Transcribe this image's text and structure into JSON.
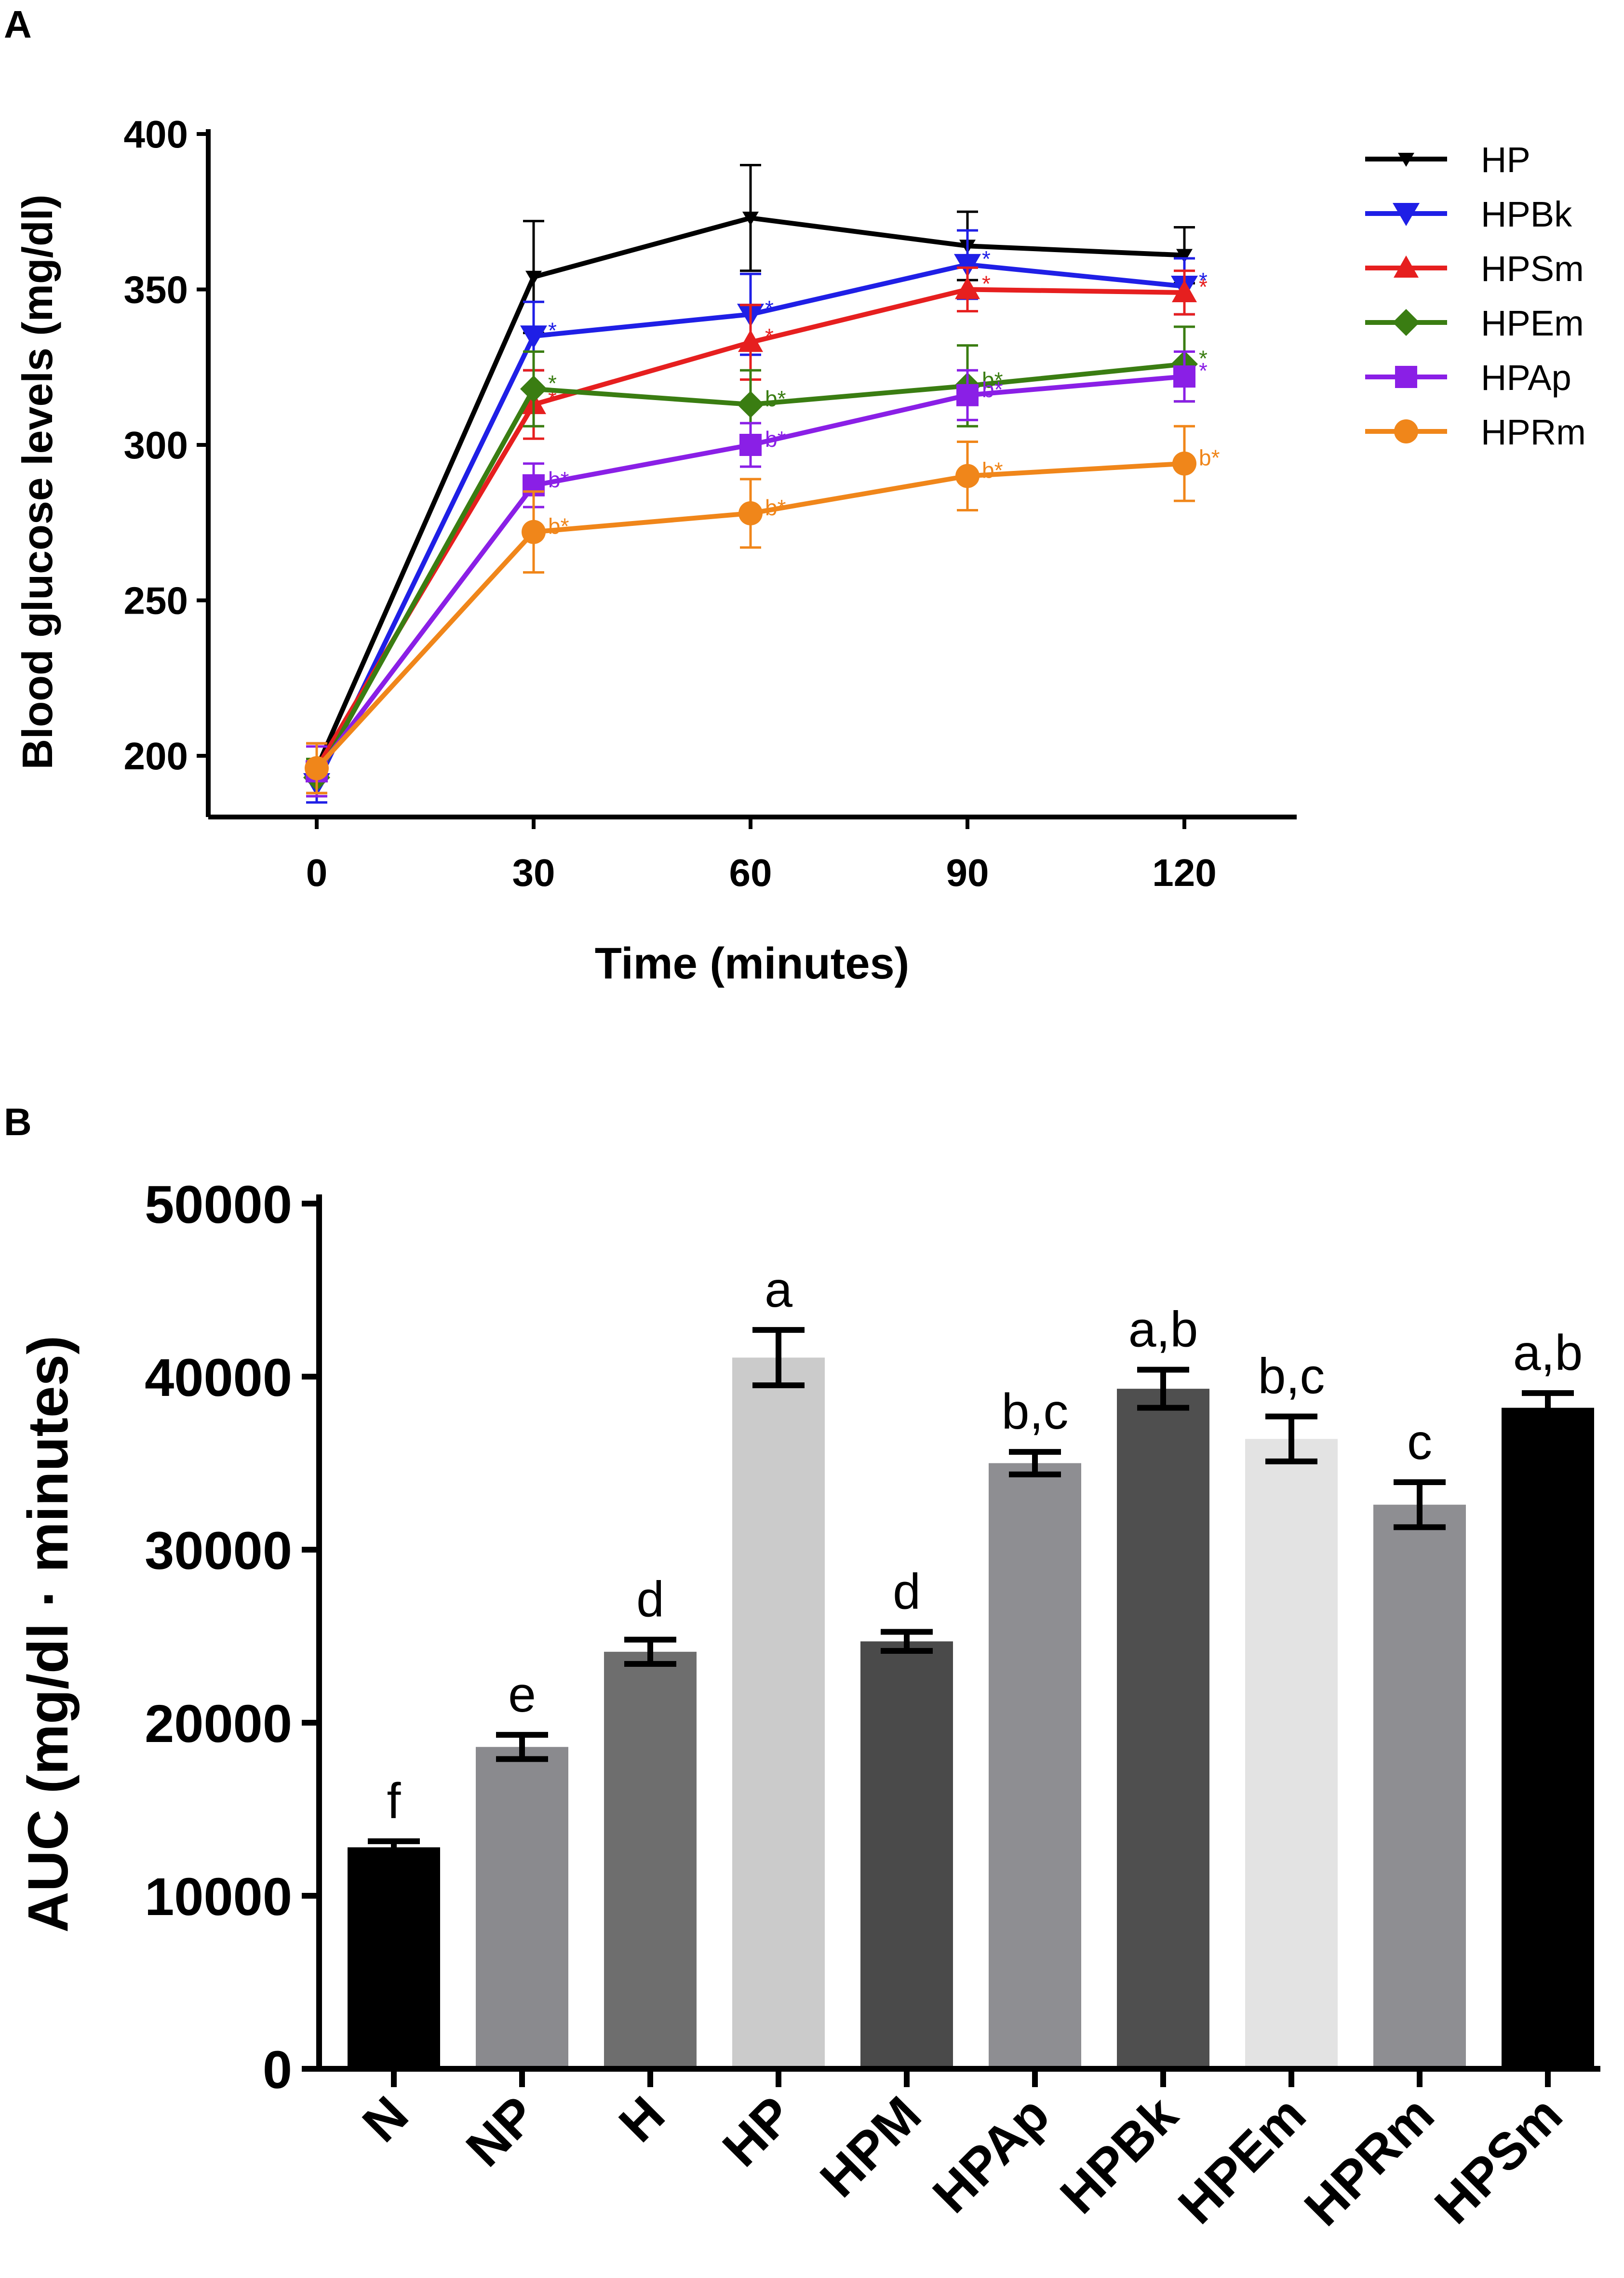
{
  "figure": {
    "panel_a_letter": "A",
    "panel_b_letter": "B"
  },
  "chart_data": [
    {
      "type": "line",
      "panel": "A",
      "title": "",
      "xlabel": "Time (minutes)",
      "ylabel": "Blood glucose levels (mg/dl)",
      "x": [
        0,
        30,
        60,
        90,
        120
      ],
      "x_ticks": [
        "0",
        "30",
        "60",
        "90",
        "120"
      ],
      "y_ticks": [
        "200",
        "250",
        "300",
        "350",
        "400"
      ],
      "ylim": [
        180,
        400
      ],
      "legend_position": "right",
      "series": [
        {
          "name": "HP",
          "color": "#000000",
          "marker": "triangle-down-small",
          "values": [
            196,
            354,
            373,
            364,
            361
          ],
          "err": [
            8,
            18,
            17,
            11,
            9
          ],
          "annotations": [
            "",
            "",
            "",
            "",
            ""
          ]
        },
        {
          "name": "HPBk",
          "color": "#1f1fe6",
          "marker": "triangle-down",
          "values": [
            191,
            335,
            342,
            358,
            351
          ],
          "err": [
            6,
            11,
            13,
            11,
            9
          ],
          "annotations": [
            "",
            "*",
            "*",
            "*",
            "*"
          ]
        },
        {
          "name": "HPSm",
          "color": "#e61f1f",
          "marker": "triangle-up",
          "values": [
            196,
            313,
            333,
            350,
            349
          ],
          "err": [
            8,
            11,
            12,
            7,
            7
          ],
          "annotations": [
            "",
            "*",
            "*",
            "*",
            "*"
          ]
        },
        {
          "name": "HPEm",
          "color": "#3a7d12",
          "marker": "diamond",
          "values": [
            193,
            318,
            313,
            319,
            326
          ],
          "err": [
            6,
            12,
            11,
            13,
            12
          ],
          "annotations": [
            "",
            "*",
            "b*",
            "b*",
            "*"
          ]
        },
        {
          "name": "HPAp",
          "color": "#8a1fe6",
          "marker": "square",
          "values": [
            195,
            287,
            300,
            316,
            322
          ],
          "err": [
            8,
            7,
            7,
            8,
            8
          ],
          "annotations": [
            "",
            "b*",
            "b*",
            "b*",
            "*"
          ]
        },
        {
          "name": "HPRm",
          "color": "#f0861a",
          "marker": "circle",
          "values": [
            196,
            272,
            278,
            290,
            294
          ],
          "err": [
            8,
            13,
            11,
            11,
            12
          ],
          "annotations": [
            "",
            "b*",
            "b*",
            "b*",
            "b*"
          ]
        }
      ]
    },
    {
      "type": "bar",
      "panel": "B",
      "title": "",
      "xlabel": "",
      "ylabel": "AUC (mg/dl · minutes)",
      "categories": [
        "N",
        "NP",
        "H",
        "HP",
        "HPM",
        "HPAp",
        "HPBk",
        "HPEm",
        "HPRm",
        "HPSm"
      ],
      "values": [
        12800,
        18600,
        24100,
        41100,
        24700,
        35000,
        39300,
        36400,
        32600,
        38200
      ],
      "err": [
        350,
        700,
        700,
        1600,
        550,
        650,
        1100,
        1300,
        1300,
        850
      ],
      "significance": [
        "f",
        "e",
        "d",
        "a",
        "d",
        "b,c",
        "a,b",
        "b,c",
        "c",
        "a,b"
      ],
      "bar_colors": [
        "#000000",
        "#8a8a8e",
        "#6e6e6e",
        "#cbcbcb",
        "#4a4a4a",
        "#8e8e92",
        "#4f4f4f",
        "#e3e3e3",
        "#8e8e92",
        "#000000"
      ],
      "y_ticks": [
        "0",
        "10000",
        "20000",
        "30000",
        "40000",
        "50000"
      ],
      "ylim": [
        0,
        50000
      ]
    }
  ]
}
